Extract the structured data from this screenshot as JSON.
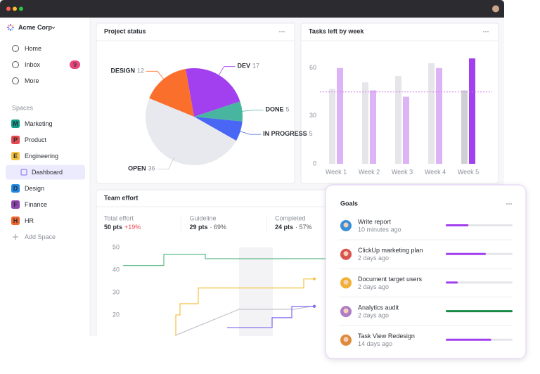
{
  "sidebar": {
    "workspace": "Acme Corp",
    "nav": [
      {
        "label": "Home"
      },
      {
        "label": "Inbox",
        "badge": 9
      },
      {
        "label": "More"
      }
    ],
    "spaces_heading": "Spaces",
    "spaces": [
      {
        "initial": "M",
        "name": "Marketing",
        "color": "#0f9d8a"
      },
      {
        "initial": "P",
        "name": "Product",
        "color": "#e5484d"
      },
      {
        "initial": "E",
        "name": "Engineering",
        "color": "#f5c242"
      },
      {
        "name": "Dashboard",
        "selected": true
      },
      {
        "initial": "D",
        "name": "Design",
        "color": "#1e88e5"
      },
      {
        "initial": "F",
        "name": "Finance",
        "color": "#8e44ad"
      },
      {
        "initial": "H",
        "name": "HR",
        "color": "#f1642b"
      }
    ],
    "add_space": "Add Space"
  },
  "project_status": {
    "title": "Project status",
    "chart_data": {
      "type": "pie",
      "categories": [
        "DEV",
        "DONE",
        "IN PROGRESS",
        "OPEN",
        "DESIGN"
      ],
      "values": [
        17,
        5,
        5,
        36,
        12
      ],
      "colors": [
        "#a23fee",
        "#48b5a0",
        "#4a66f5",
        "#e8e9ee",
        "#fb6f2c"
      ]
    }
  },
  "tasks_left": {
    "title": "Tasks left by week",
    "chart_data": {
      "type": "bar",
      "categories": [
        "Week 1",
        "Week 2",
        "Week 3",
        "Week 4",
        "Week 5"
      ],
      "series": [
        {
          "colors": [
            "#e6e6ea",
            "#e6e6ea",
            "#e6e6ea",
            "#e6e6ea",
            "#cfd0d4"
          ],
          "values": [
            47,
            51,
            55,
            63,
            46
          ]
        },
        {
          "colors": [
            "#dcb4f6",
            "#dcb4f6",
            "#dcb4f6",
            "#dcb4f6",
            "#a23fee"
          ],
          "values": [
            60,
            46,
            42,
            60,
            66
          ]
        }
      ],
      "ylim": [
        0,
        70
      ],
      "yticks": [
        0,
        30,
        60
      ],
      "reference_line": 45,
      "reference_color": "#d77bf0"
    }
  },
  "team_effort": {
    "title": "Team effort",
    "stats": [
      {
        "label": "Total effort",
        "value": "50 pts",
        "change": "+19%"
      },
      {
        "label": "Guideline",
        "value": "29 pts",
        "change": "· 69%"
      },
      {
        "label": "Completed",
        "value": "24 pts",
        "change": "· 57%"
      }
    ],
    "chart_data": {
      "type": "line",
      "xlim": [
        0,
        30
      ],
      "ylim": [
        10,
        52
      ],
      "yticks": [
        20,
        30,
        40,
        50
      ],
      "shade": [
        17,
        21.8
      ],
      "series": [
        {
          "color": "#5fba8a",
          "step": true,
          "x": [
            0.5,
            6.3,
            12.2,
            29.5
          ],
          "values": [
            42,
            47,
            45,
            45
          ]
        },
        {
          "color": "#f5c242",
          "step": true,
          "end_marker": true,
          "x": [
            5,
            8,
            8.6,
            11.2,
            26.2,
            27.7
          ],
          "values": [
            10,
            20,
            25,
            32,
            36,
            36
          ]
        },
        {
          "color": "#c4c4cc",
          "step": false,
          "end_marker": true,
          "x": [
            8,
            17,
            24.8,
            27.7
          ],
          "values": [
            11,
            22.5,
            22.5,
            24
          ]
        },
        {
          "color": "#7b6cf0",
          "step": true,
          "end_marker": true,
          "x": [
            15.3,
            21.7,
            24.5,
            27.7
          ],
          "values": [
            14.4,
            18.8,
            23.8,
            23.8
          ]
        }
      ]
    }
  },
  "goals": {
    "title": "Goals",
    "items": [
      {
        "name": "Write report",
        "time": "10 minutes ago",
        "progress": 34,
        "color": "#a23fee"
      },
      {
        "name": "ClickUp marketing plan",
        "time": "2 days ago",
        "progress": 60,
        "color": "#a23fee"
      },
      {
        "name": "Document target users",
        "time": "2 days ago",
        "progress": 18,
        "color": "#a23fee"
      },
      {
        "name": "Analytics audit",
        "time": "2 days ago",
        "progress": 100,
        "color": "#1a8a47"
      },
      {
        "name": "Task View Redesign",
        "time": "14 days ago",
        "progress": 68,
        "color": "#a23fee"
      }
    ]
  }
}
